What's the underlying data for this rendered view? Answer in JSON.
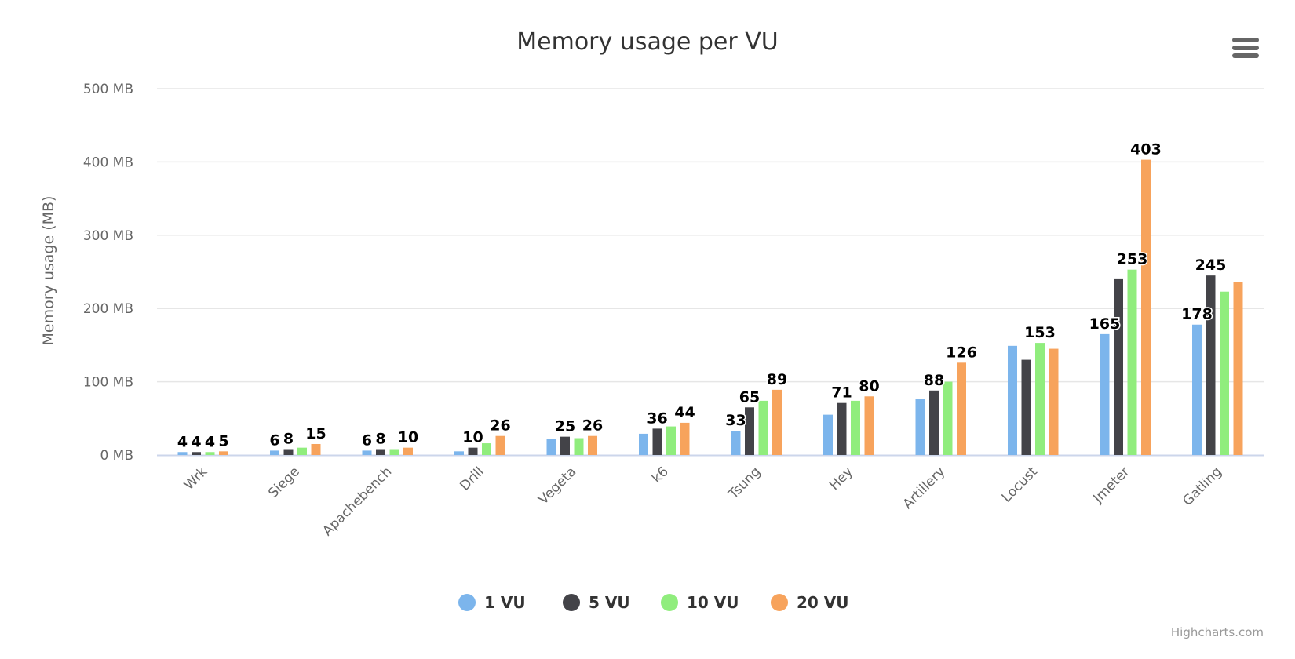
{
  "chart_data": {
    "type": "bar",
    "orientation": "vertical",
    "title": "Memory usage per VU",
    "ylabel": "Memory usage (MB)",
    "xlabel": "",
    "ylim": [
      0,
      500
    ],
    "yticks": [
      0,
      100,
      200,
      300,
      400,
      500
    ],
    "ytick_labels": [
      "0 MB",
      "100 MB",
      "200 MB",
      "300 MB",
      "400 MB",
      "500 MB"
    ],
    "grid": true,
    "legend": "bottom-center",
    "categories": [
      "Wrk",
      "Siege",
      "Apachebench",
      "Drill",
      "Vegeta",
      "k6",
      "Tsung",
      "Hey",
      "Artillery",
      "Locust",
      "Jmeter",
      "Gatling"
    ],
    "series": [
      {
        "name": "1 VU",
        "color": "#7cb5ec",
        "values": [
          4,
          6,
          6,
          5,
          22,
          29,
          33,
          55,
          76,
          149,
          165,
          178
        ],
        "labeled": [
          true,
          true,
          true,
          false,
          false,
          false,
          true,
          false,
          false,
          false,
          true,
          true
        ]
      },
      {
        "name": "5 VU",
        "color": "#434348",
        "values": [
          4,
          8,
          8,
          10,
          25,
          36,
          65,
          71,
          88,
          130,
          241,
          245
        ],
        "labeled": [
          true,
          true,
          true,
          true,
          true,
          true,
          true,
          true,
          true,
          false,
          false,
          true
        ]
      },
      {
        "name": "10 VU",
        "color": "#90ed7d",
        "values": [
          4,
          10,
          8,
          16,
          23,
          39,
          74,
          74,
          100,
          153,
          253,
          223
        ],
        "labeled": [
          true,
          false,
          false,
          false,
          false,
          false,
          false,
          false,
          false,
          true,
          true,
          false
        ]
      },
      {
        "name": "20 VU",
        "color": "#f7a35c",
        "values": [
          5,
          15,
          10,
          26,
          26,
          44,
          89,
          80,
          126,
          145,
          403,
          236
        ],
        "labeled": [
          true,
          true,
          true,
          true,
          true,
          true,
          true,
          true,
          true,
          false,
          true,
          false
        ]
      }
    ]
  },
  "menu": {
    "icon": "hamburger-menu-icon"
  },
  "credits": "Highcharts.com"
}
